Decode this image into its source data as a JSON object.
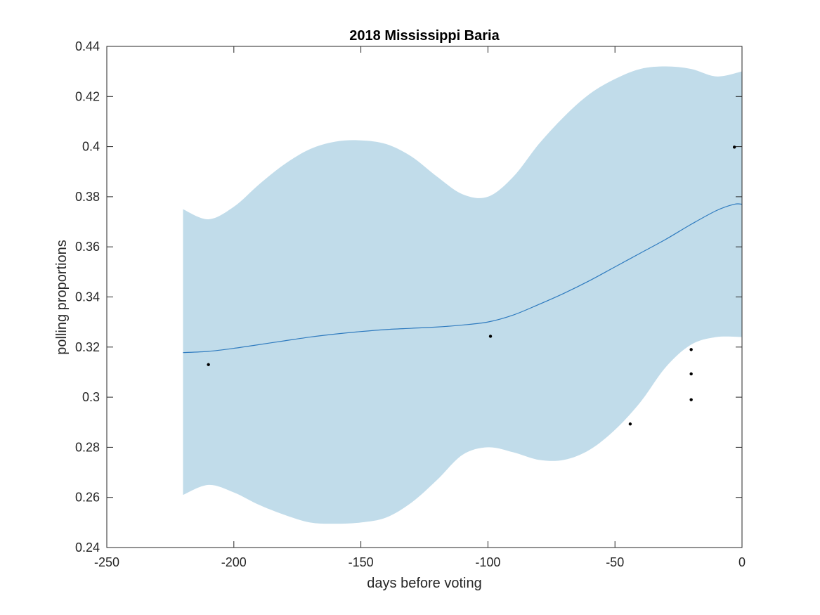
{
  "chart_data": {
    "type": "line",
    "title": "2018 Mississippi Baria",
    "xlabel": "days before voting",
    "ylabel": "polling proportions",
    "xlim": [
      -250,
      0
    ],
    "ylim": [
      0.24,
      0.44
    ],
    "grid": false,
    "x_ticks": [
      -250,
      -200,
      -150,
      -100,
      -50,
      0
    ],
    "x_tick_labels": [
      "-250",
      "-200",
      "-150",
      "-100",
      "-50",
      "0"
    ],
    "y_ticks": [
      0.24,
      0.26,
      0.28,
      0.3,
      0.32,
      0.34,
      0.36,
      0.38,
      0.4,
      0.42,
      0.44
    ],
    "y_tick_labels": [
      "0.24",
      "0.26",
      "0.28",
      "0.3",
      "0.32",
      "0.34",
      "0.36",
      "0.38",
      "0.4",
      "0.42",
      "0.44"
    ],
    "colors": {
      "band": "#c1dcea",
      "line": "#2f7bbf",
      "points": "#000000",
      "axes": "#262626"
    },
    "series": [
      {
        "type": "band",
        "x": [
          -220,
          -210,
          -200,
          -190,
          -180,
          -170,
          -160,
          -150,
          -140,
          -130,
          -120,
          -110,
          -100,
          -90,
          -80,
          -70,
          -60,
          -50,
          -40,
          -30,
          -20,
          -10,
          0
        ],
        "upper": [
          0.375,
          0.371,
          0.376,
          0.385,
          0.393,
          0.399,
          0.402,
          0.4025,
          0.401,
          0.396,
          0.388,
          0.381,
          0.38,
          0.388,
          0.401,
          0.412,
          0.421,
          0.427,
          0.431,
          0.432,
          0.431,
          0.428,
          0.43
        ],
        "lower": [
          0.261,
          0.265,
          0.262,
          0.257,
          0.253,
          0.25,
          0.2495,
          0.25,
          0.252,
          0.258,
          0.267,
          0.277,
          0.28,
          0.278,
          0.275,
          0.275,
          0.279,
          0.287,
          0.298,
          0.312,
          0.321,
          0.324,
          0.324
        ]
      },
      {
        "type": "line",
        "x": [
          -220,
          -210,
          -200,
          -190,
          -180,
          -170,
          -160,
          -150,
          -140,
          -130,
          -120,
          -110,
          -100,
          -90,
          -80,
          -70,
          -60,
          -50,
          -40,
          -30,
          -20,
          -10,
          -3,
          0
        ],
        "y": [
          0.3178,
          0.3183,
          0.3195,
          0.321,
          0.3225,
          0.324,
          0.3252,
          0.3262,
          0.327,
          0.3275,
          0.328,
          0.3288,
          0.33,
          0.3328,
          0.337,
          0.3415,
          0.3465,
          0.352,
          0.3575,
          0.363,
          0.369,
          0.3745,
          0.377,
          0.377
        ]
      },
      {
        "type": "scatter",
        "x": [
          -210,
          -99,
          -44,
          -20,
          -20,
          -20,
          -3
        ],
        "y": [
          0.313,
          0.3243,
          0.2893,
          0.319,
          0.3093,
          0.299,
          0.3998
        ]
      }
    ]
  }
}
